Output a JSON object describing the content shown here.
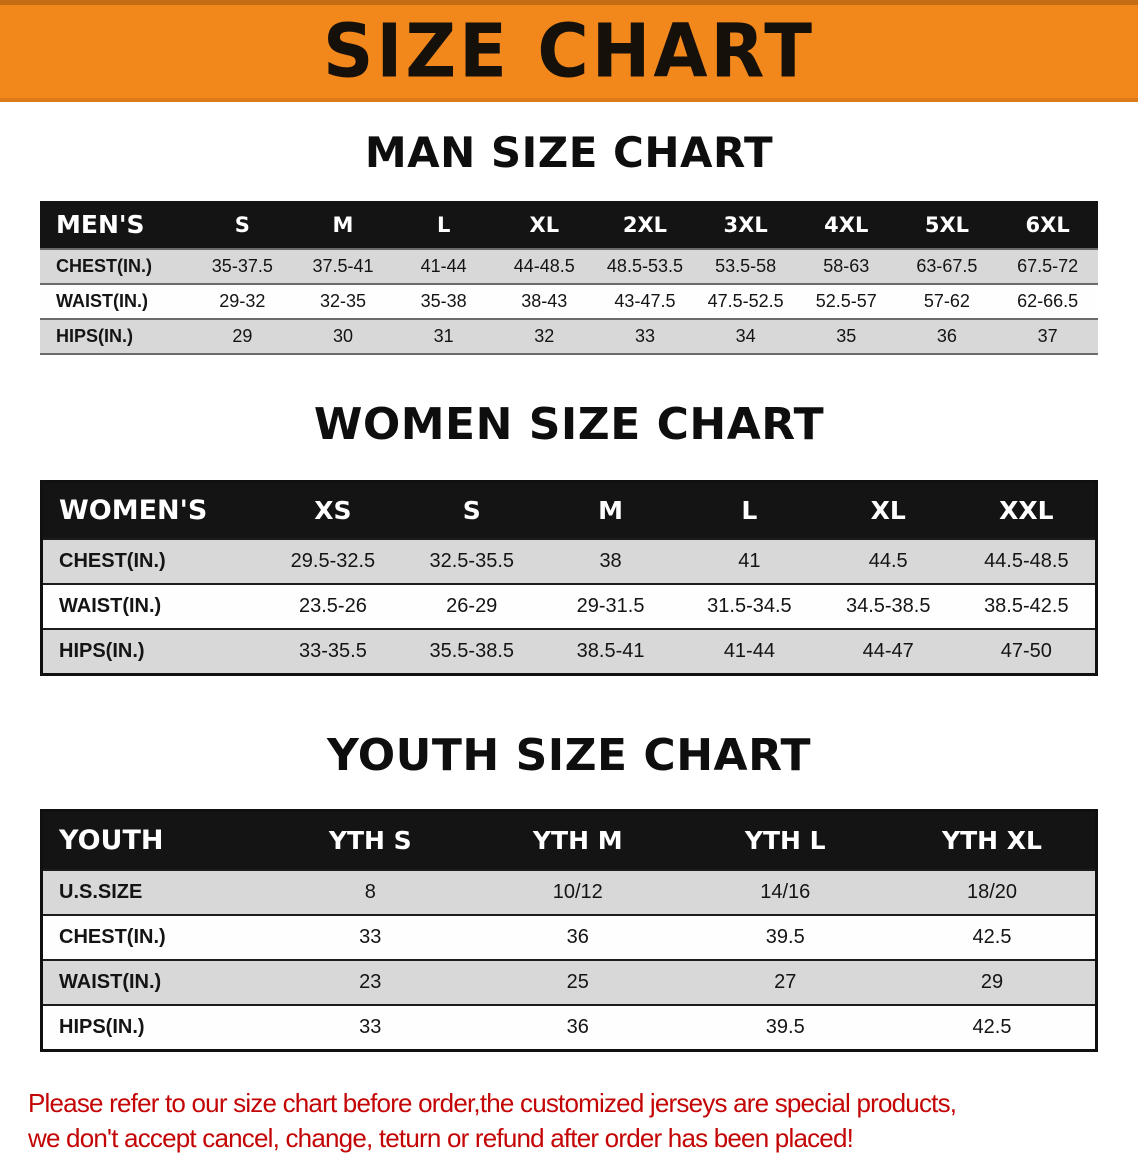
{
  "banner": {
    "title": "SIZE CHART"
  },
  "colors": {
    "banner_bg": "#F2871C",
    "header_bg": "#141414",
    "row_stripe": "#D8D8D8",
    "notice_red": "#C40505"
  },
  "sections": [
    {
      "id": "men",
      "heading": "MAN SIZE CHART",
      "table": {
        "header": [
          "MEN'S",
          "S",
          "M",
          "L",
          "XL",
          "2XL",
          "3XL",
          "4XL",
          "5XL",
          "6XL"
        ],
        "rows": [
          [
            "CHEST(IN.)",
            "35-37.5",
            "37.5-41",
            "41-44",
            "44-48.5",
            "48.5-53.5",
            "53.5-58",
            "58-63",
            "63-67.5",
            "67.5-72"
          ],
          [
            "WAIST(IN.)",
            "29-32",
            "32-35",
            "35-38",
            "38-43",
            "43-47.5",
            "47.5-52.5",
            "52.5-57",
            "57-62",
            "62-66.5"
          ],
          [
            "HIPS(IN.)",
            "29",
            "30",
            "31",
            "32",
            "33",
            "34",
            "35",
            "36",
            "37"
          ]
        ]
      }
    },
    {
      "id": "women",
      "heading": "WOMEN SIZE CHART",
      "table": {
        "header": [
          "WOMEN'S",
          "XS",
          "S",
          "M",
          "L",
          "XL",
          "XXL"
        ],
        "rows": [
          [
            "CHEST(IN.)",
            "29.5-32.5",
            "32.5-35.5",
            "38",
            "41",
            "44.5",
            "44.5-48.5"
          ],
          [
            "WAIST(IN.)",
            "23.5-26",
            "26-29",
            "29-31.5",
            "31.5-34.5",
            "34.5-38.5",
            "38.5-42.5"
          ],
          [
            "HIPS(IN.)",
            "33-35.5",
            "35.5-38.5",
            "38.5-41",
            "41-44",
            "44-47",
            "47-50"
          ]
        ]
      }
    },
    {
      "id": "youth",
      "heading": "YOUTH SIZE CHART",
      "table": {
        "header": [
          "YOUTH",
          "YTH S",
          "YTH M",
          "YTH L",
          "YTH XL"
        ],
        "rows": [
          [
            "U.S.SIZE",
            "8",
            "10/12",
            "14/16",
            "18/20"
          ],
          [
            "CHEST(IN.)",
            "33",
            "36",
            "39.5",
            "42.5"
          ],
          [
            "WAIST(IN.)",
            "23",
            "25",
            "27",
            "29"
          ],
          [
            "HIPS(IN.)",
            "33",
            "36",
            "39.5",
            "42.5"
          ]
        ]
      }
    }
  ],
  "notice": {
    "line1": "Please refer to our size chart before order,the customized jerseys are special products,",
    "line2": "we don't accept cancel, change, teturn or refund after order has been placed!"
  }
}
